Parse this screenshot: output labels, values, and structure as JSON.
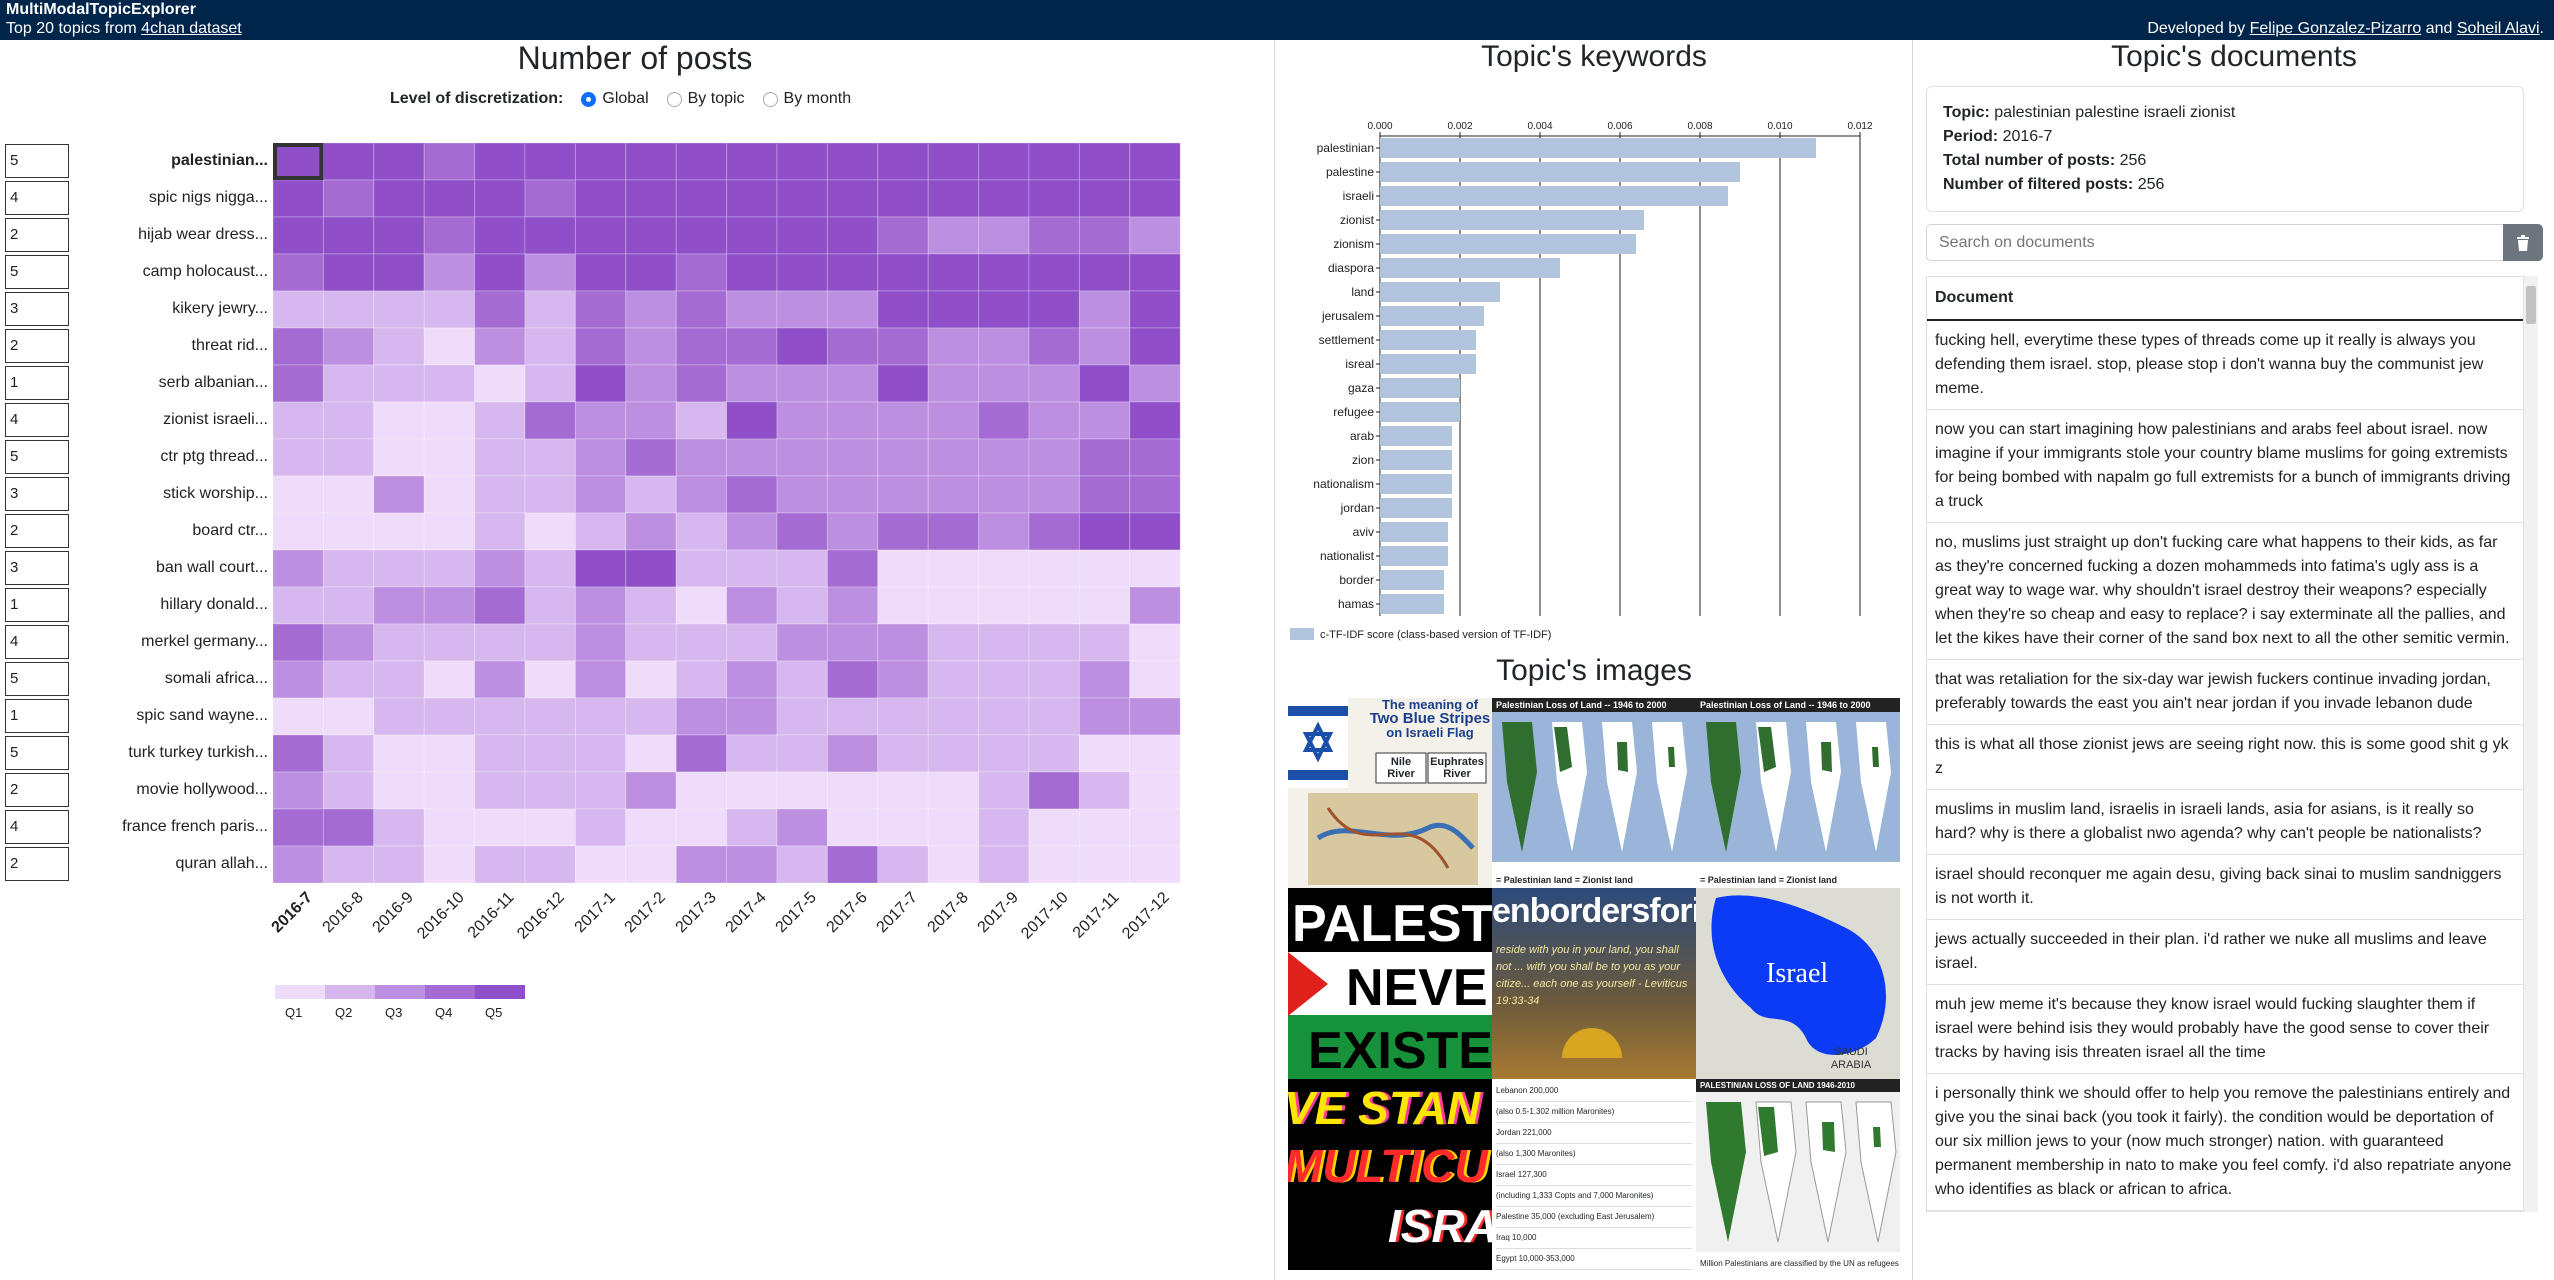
{
  "header": {
    "app_title": "MultiModalTopicExplorer",
    "subtitle_prefix": "Top 20 topics from ",
    "subtitle_link": "4chan dataset",
    "credits_prefix": "Developed by ",
    "author1": "Felipe Gonzalez-Pizarro",
    "credits_and": " and ",
    "author2": "Soheil Alavi",
    "credits_suffix": "."
  },
  "posts_panel": {
    "title": "Number of posts",
    "discretization_label": "Level of discretization:",
    "options": [
      {
        "label": "Global",
        "selected": true
      },
      {
        "label": "By topic",
        "selected": false
      },
      {
        "label": "By month",
        "selected": false
      }
    ],
    "topics": [
      {
        "label": "palestinian...",
        "count": "5",
        "selected": true
      },
      {
        "label": "spic nigs nigga...",
        "count": "4"
      },
      {
        "label": "hijab wear dress...",
        "count": "2"
      },
      {
        "label": "camp holocaust...",
        "count": "5"
      },
      {
        "label": "kikery jewry...",
        "count": "3"
      },
      {
        "label": "threat rid...",
        "count": "2"
      },
      {
        "label": "serb albanian...",
        "count": "1"
      },
      {
        "label": "zionist israeli...",
        "count": "4"
      },
      {
        "label": "ctr ptg thread...",
        "count": "5"
      },
      {
        "label": "stick worship...",
        "count": "3"
      },
      {
        "label": "board ctr...",
        "count": "2"
      },
      {
        "label": "ban wall court...",
        "count": "3"
      },
      {
        "label": "hillary donald...",
        "count": "1"
      },
      {
        "label": "merkel germany...",
        "count": "4"
      },
      {
        "label": "somali africa...",
        "count": "5"
      },
      {
        "label": "spic sand wayne...",
        "count": "1"
      },
      {
        "label": "turk turkey turkish...",
        "count": "5"
      },
      {
        "label": "movie hollywood...",
        "count": "2"
      },
      {
        "label": "france french paris...",
        "count": "4"
      },
      {
        "label": "quran allah...",
        "count": "2"
      }
    ],
    "months": [
      "2016-7",
      "2016-8",
      "2016-9",
      "2016-10",
      "2016-11",
      "2016-12",
      "2017-1",
      "2017-2",
      "2017-3",
      "2017-4",
      "2017-5",
      "2017-6",
      "2017-7",
      "2017-8",
      "2017-9",
      "2017-10",
      "2017-11",
      "2017-12"
    ],
    "selected_month": "2016-7",
    "quintiles": [
      [
        5,
        5,
        5,
        4,
        5,
        5,
        5,
        5,
        5,
        5,
        5,
        5,
        5,
        5,
        5,
        5,
        5,
        5
      ],
      [
        5,
        4,
        5,
        5,
        5,
        4,
        5,
        5,
        5,
        5,
        5,
        5,
        5,
        5,
        5,
        5,
        5,
        5
      ],
      [
        5,
        5,
        5,
        4,
        5,
        5,
        5,
        5,
        5,
        5,
        5,
        5,
        4,
        3,
        3,
        4,
        4,
        3
      ],
      [
        4,
        5,
        5,
        3,
        5,
        3,
        5,
        5,
        4,
        5,
        5,
        5,
        5,
        5,
        5,
        5,
        5,
        5
      ],
      [
        2,
        2,
        2,
        2,
        4,
        2,
        4,
        3,
        4,
        3,
        3,
        3,
        5,
        5,
        5,
        5,
        3,
        5
      ],
      [
        4,
        3,
        2,
        1,
        3,
        2,
        4,
        3,
        4,
        4,
        5,
        4,
        4,
        3,
        3,
        4,
        3,
        5
      ],
      [
        4,
        2,
        2,
        2,
        1,
        2,
        5,
        3,
        4,
        3,
        3,
        3,
        5,
        3,
        3,
        3,
        5,
        3
      ],
      [
        2,
        2,
        1,
        1,
        2,
        4,
        3,
        3,
        2,
        5,
        3,
        3,
        3,
        3,
        4,
        3,
        3,
        5
      ],
      [
        2,
        2,
        1,
        1,
        2,
        2,
        3,
        4,
        3,
        3,
        3,
        3,
        3,
        3,
        3,
        3,
        4,
        4
      ],
      [
        1,
        1,
        3,
        1,
        2,
        2,
        3,
        2,
        3,
        4,
        3,
        3,
        3,
        3,
        3,
        3,
        4,
        4
      ],
      [
        1,
        1,
        1,
        1,
        2,
        1,
        2,
        3,
        2,
        3,
        4,
        3,
        4,
        4,
        3,
        4,
        5,
        5
      ],
      [
        3,
        2,
        2,
        2,
        3,
        2,
        5,
        5,
        2,
        2,
        2,
        4,
        1,
        1,
        1,
        1,
        1,
        1
      ],
      [
        2,
        2,
        3,
        3,
        4,
        2,
        3,
        2,
        1,
        3,
        2,
        3,
        1,
        1,
        1,
        1,
        1,
        3
      ],
      [
        4,
        3,
        2,
        2,
        2,
        2,
        3,
        2,
        2,
        2,
        3,
        3,
        3,
        2,
        2,
        2,
        2,
        1
      ],
      [
        3,
        2,
        2,
        1,
        3,
        1,
        3,
        1,
        2,
        3,
        2,
        4,
        3,
        2,
        2,
        2,
        3,
        1
      ],
      [
        1,
        1,
        2,
        2,
        2,
        2,
        2,
        2,
        3,
        3,
        2,
        2,
        2,
        2,
        2,
        2,
        3,
        3
      ],
      [
        4,
        2,
        1,
        1,
        2,
        2,
        2,
        1,
        4,
        2,
        2,
        3,
        2,
        2,
        2,
        2,
        1,
        1
      ],
      [
        3,
        2,
        1,
        1,
        2,
        2,
        2,
        3,
        1,
        1,
        1,
        1,
        1,
        1,
        2,
        4,
        2,
        1
      ],
      [
        4,
        4,
        2,
        1,
        1,
        1,
        2,
        1,
        1,
        2,
        3,
        1,
        1,
        1,
        2,
        1,
        1,
        1
      ],
      [
        3,
        2,
        2,
        1,
        2,
        2,
        1,
        1,
        3,
        3,
        2,
        4,
        2,
        1,
        2,
        1,
        1,
        1
      ]
    ],
    "legend": [
      "Q1",
      "Q2",
      "Q3",
      "Q4",
      "Q5"
    ],
    "colors": [
      "#eedcfa",
      "#d6b8ef",
      "#bd8fe0",
      "#a46bd2",
      "#8f4fc8"
    ]
  },
  "keywords_panel": {
    "title": "Topic's keywords",
    "legend_label": "c-TF-IDF score (class-based version of TF-IDF)",
    "bar_color": "#b0c4de",
    "chart_data": {
      "type": "bar",
      "orientation": "horizontal",
      "categories": [
        "palestinian",
        "palestine",
        "israeli",
        "zionist",
        "zionism",
        "diaspora",
        "land",
        "jerusalem",
        "settlement",
        "isreal",
        "gaza",
        "refugee",
        "arab",
        "zion",
        "nationalism",
        "jordan",
        "aviv",
        "nationalist",
        "border",
        "hamas"
      ],
      "values": [
        0.0109,
        0.009,
        0.0087,
        0.0066,
        0.0064,
        0.0045,
        0.003,
        0.0026,
        0.0024,
        0.0024,
        0.002,
        0.002,
        0.0018,
        0.0018,
        0.0018,
        0.0018,
        0.0017,
        0.0017,
        0.0016,
        0.0016
      ],
      "xlim": [
        0,
        0.012
      ],
      "ticks": [
        "0.000",
        "0.002",
        "0.004",
        "0.006",
        "0.008",
        "0.010",
        "0.012"
      ],
      "grid": true,
      "legend": "bottom-left"
    }
  },
  "images_panel": {
    "title": "Topic's images",
    "tile1_title": "The meaning of",
    "tile1_title2": "Two Blue Stripes",
    "tile1_title3": "on Israeli Flag",
    "tile1_river1": "Nile River",
    "tile1_river2": "Euphrates River",
    "tile2_title": "Palestinian Loss of Land -- 1946 to 2000",
    "tile2_caption": "= Palestinian land   = Zionist land",
    "tile3_title": "Palestinian Loss of Land -- 1946 to 2000",
    "tile3_caption": "= Palestinian land   = Zionist land",
    "tile4_line1": "PALEST",
    "tile4_line2": "NEVE",
    "tile4_line3": "EXISTE",
    "tile5_line1": "enbordersforis",
    "tile5_text": "reside with you in your land, you shall not ... with you shall be to you as your citize... each one as yourself - Leviticus 19:33-34",
    "tile6_label": "Israel",
    "tile6_sub": "SAUDI ARABIA",
    "tile7_line1": "VE STAN",
    "tile7_line2": "MULTICU",
    "tile7_line3": "ISRA",
    "tile8_rows": [
      "Lebanon  200,000",
      "(also 0.5-1.302 million Maronites)",
      "Jordan  221,000",
      "(also 1,300 Maronites)",
      "Israel  127,300",
      "(including 1,333 Copts and 7,000 Maronites)",
      "Palestine  35,000 (excluding East Jerusalem)",
      "Iraq  10,000",
      "Egypt  10,000-353,000"
    ],
    "tile9_title": "PALESTINIAN LOSS OF LAND 1946-2010",
    "tile9_caption": "Million Palestinians are classified by the UN as refugees"
  },
  "documents_panel": {
    "title": "Topic's documents",
    "topic_label": "Topic:",
    "topic_value": "palestinian palestine israeli zionist",
    "period_label": "Period:",
    "period_value": "2016-7",
    "total_label": "Total number of posts:",
    "total_value": "256",
    "filtered_label": "Number of filtered posts:",
    "filtered_value": "256",
    "search_placeholder": "Search on documents",
    "column_header": "Document",
    "documents": [
      "fucking hell, everytime these types of threads come up it really is always you defending them israel. stop, please stop i don't wanna buy the communist jew meme.",
      "now you can start imagining how palestinians and arabs feel about israel. now imagine if your immigrants stole your country blame muslims for going extremists for being bombed with napalm go full extremists for a bunch of immigrants driving a truck",
      "no, muslims just straight up don't fucking care what happens to their kids, as far as they're concerned fucking a dozen mohammeds into fatima's ugly ass is a great way to wage war. why shouldn't israel destroy their weapons? especially when they're so cheap and easy to replace? i say exterminate all the pallies, and let the kikes have their corner of the sand box next to all the other semitic vermin.",
      "that was retaliation for the six-day war jewish fuckers continue invading jordan, preferably towards the east you ain't near jordan if you invade lebanon dude",
      "this is what all those zionist jews are seeing right now. this is some good shit g yk z",
      "muslims in muslim land, israelis in israeli lands, asia for asians, is it really so hard? why is there a globalist nwo agenda? why can't people be nationalists?",
      "israel should reconquer me again desu, giving back sinai to muslim sandniggers is not worth it.",
      "jews actually succeeded in their plan. i'd rather we nuke all muslims and leave israel.",
      "muh jew meme it's because they know israel would fucking slaughter them if israel were behind isis they would probably have the good sense to cover their tracks by having isis threaten israel all the time",
      "i personally think we should offer to help you remove the palestinians entirely and give you the sinai back (you took it fairly). the condition would be deportation of our six million jews to your (now much stronger) nation. with guaranteed permanent membership in nato to make you feel comfy. i'd also repatriate anyone who identifies as black or african to africa."
    ]
  }
}
